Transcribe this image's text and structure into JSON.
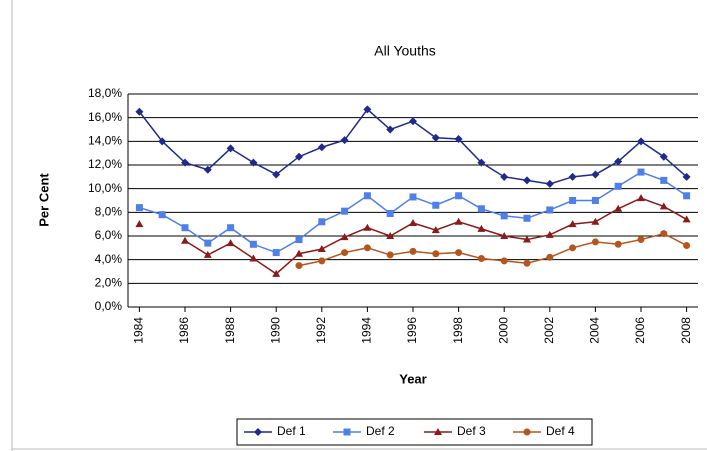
{
  "chart_data": {
    "type": "line",
    "title": "All Youths",
    "x_label": "Year",
    "y_label": "Per Cent",
    "x": [
      1984,
      1985,
      1986,
      1987,
      1988,
      1989,
      1990,
      1991,
      1992,
      1993,
      1994,
      1995,
      1996,
      1997,
      1998,
      1999,
      2000,
      2001,
      2002,
      2003,
      2004,
      2005,
      2006,
      2007,
      2008
    ],
    "series": [
      {
        "name": "Def 1",
        "color": "#1f2a8c",
        "marker": "diamond",
        "values": [
          16.5,
          14.0,
          12.2,
          11.6,
          13.4,
          12.2,
          11.2,
          12.7,
          13.5,
          14.1,
          16.7,
          15.0,
          15.7,
          14.3,
          14.2,
          12.2,
          11.0,
          10.7,
          10.4,
          11.0,
          11.2,
          12.3,
          14.0,
          12.7,
          11.0
        ]
      },
      {
        "name": "Def 2",
        "color": "#4f7fe8",
        "marker": "square",
        "values": [
          8.4,
          7.8,
          6.7,
          5.4,
          6.7,
          5.3,
          4.6,
          5.7,
          7.2,
          8.1,
          9.4,
          7.9,
          9.3,
          8.6,
          9.4,
          8.3,
          7.7,
          7.5,
          8.2,
          9.0,
          9.0,
          10.2,
          11.4,
          10.7,
          9.4
        ]
      },
      {
        "name": "Def 3",
        "color": "#8b1a1a",
        "marker": "triangle",
        "values": [
          7.0,
          null,
          5.6,
          4.4,
          5.4,
          4.1,
          2.8,
          4.5,
          4.9,
          5.9,
          6.7,
          6.0,
          7.1,
          6.5,
          7.2,
          6.6,
          6.0,
          5.7,
          6.1,
          7.0,
          7.2,
          8.3,
          9.2,
          8.5,
          7.4
        ]
      },
      {
        "name": "Def 4",
        "color": "#b5561f",
        "marker": "circle",
        "values": [
          null,
          null,
          null,
          null,
          null,
          null,
          null,
          3.5,
          3.9,
          4.6,
          5.0,
          4.4,
          4.7,
          4.5,
          4.6,
          4.1,
          3.9,
          3.7,
          4.2,
          5.0,
          5.5,
          5.3,
          5.7,
          6.2,
          5.2
        ]
      }
    ],
    "xlim": [
      1983.5,
      2008.5
    ],
    "xticks": [
      1984,
      1986,
      1988,
      1990,
      1992,
      1994,
      1996,
      1998,
      2000,
      2002,
      2004,
      2006,
      2008
    ],
    "ylim": [
      0,
      18
    ],
    "yticks": [
      {
        "value": 0,
        "label": "0,0%"
      },
      {
        "value": 2,
        "label": "2,0%"
      },
      {
        "value": 4,
        "label": "4,0%"
      },
      {
        "value": 6,
        "label": "6,0%"
      },
      {
        "value": 8,
        "label": "8,0%"
      },
      {
        "value": 10,
        "label": "10,0%"
      },
      {
        "value": 12,
        "label": "12,0%"
      },
      {
        "value": 14,
        "label": "14,0%"
      },
      {
        "value": 16,
        "label": "16,0%"
      },
      {
        "value": 18,
        "label": "18,0%"
      }
    ],
    "grid": true,
    "legend": "bottom"
  }
}
